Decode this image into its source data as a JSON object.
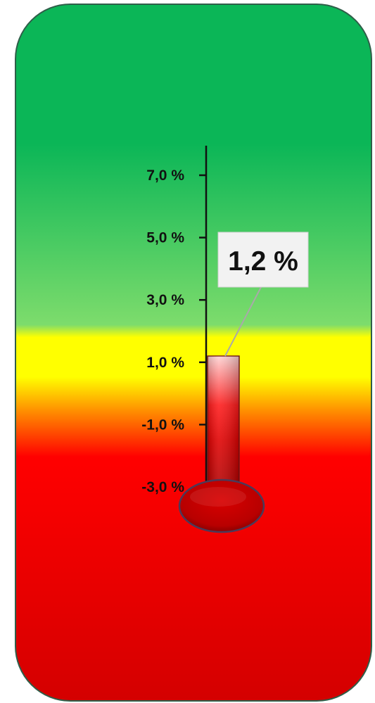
{
  "chart_data": {
    "type": "bar",
    "subtype": "thermometer-gauge",
    "values": [
      1.2
    ],
    "value_label": "1,2 %",
    "ylim": [
      -3.9,
      8.9
    ],
    "tick_values": [
      7,
      5,
      3,
      1,
      -1,
      -3
    ],
    "tick_labels": [
      "7,0 %",
      "5,0 %",
      "3,0 %",
      "1,0 %",
      "-1,0 %",
      "-3,0 %"
    ],
    "grid": false,
    "legend": "none",
    "colors": {
      "background_top": "#0bb657",
      "background_mid_green": "#7ddc6c",
      "background_yellow": "#ffff00",
      "background_orange": "#ff8c00",
      "background_red": "#ff0000",
      "background_bottom": "#d40000",
      "tube_fill": "#e00000",
      "bulb_fill": "#c40000",
      "frame_stroke": "#2f5e49"
    }
  }
}
